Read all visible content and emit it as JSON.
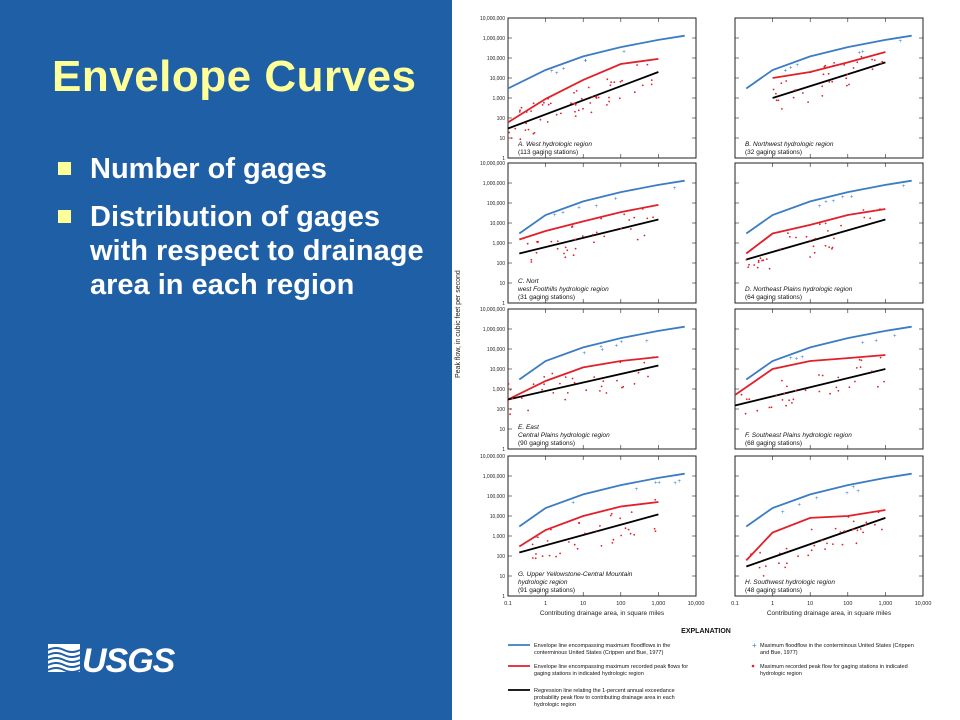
{
  "title": "Envelope Curves",
  "bullets": [
    "Number of gages",
    "Distribution of gages with respect to drainage area in each region"
  ],
  "logo_text": "USGS",
  "colors": {
    "background": "#1f5fa6",
    "title": "#ffff99",
    "bullet_text": "#ffffff",
    "national_envelope": "#3b7cc4",
    "regional_envelope": "#e0202a",
    "regression": "#000000",
    "regional_points": "#e0202a"
  },
  "chart_data": [
    {
      "type": "line",
      "title": "A. West hydrologic region",
      "subtitle": "(113 gaging stations)",
      "panel": "A",
      "x": [
        0.1,
        1,
        10,
        100,
        1000,
        10000
      ],
      "xlabel": "Contributing drainage area, in square miles",
      "ylabel": "Peak flow, in cubic feet per second",
      "xlim": [
        0.1,
        10000
      ],
      "ylim": [
        1,
        10000000
      ],
      "series": [
        {
          "name": "Envelope line encompassing maximum floodflows in the conterminous United States (Crippen and Bue, 1977)",
          "x": [
            0.1,
            1,
            10,
            100,
            1000,
            5000
          ],
          "y": [
            3000,
            25000,
            120000,
            350000,
            800000,
            1300000
          ]
        },
        {
          "name": "Envelope line encompassing maximum recorded peak flows for gaging stations in indicated hydrologic region",
          "x": [
            0.1,
            1,
            10,
            100,
            1000
          ],
          "y": [
            60,
            900,
            8000,
            50000,
            90000
          ]
        },
        {
          "name": "Regression line relating the 1-percent annual exceedance probability peak flow to contributing drainage area in each hydrologic region",
          "x": [
            0.1,
            1000
          ],
          "y": [
            30,
            20000
          ]
        }
      ]
    },
    {
      "type": "line",
      "title": "B. Northwest hydrologic region",
      "subtitle": "(32 gaging stations)",
      "panel": "B",
      "x": [
        0.1,
        1,
        10,
        100,
        1000,
        10000
      ],
      "xlim": [
        0.1,
        10000
      ],
      "ylim": [
        1,
        10000000
      ],
      "series": [
        {
          "name": "national",
          "x": [
            0.2,
            1,
            10,
            100,
            1000,
            5000
          ],
          "y": [
            3000,
            25000,
            120000,
            350000,
            800000,
            1300000
          ]
        },
        {
          "name": "regional",
          "x": [
            1,
            10,
            100,
            1000
          ],
          "y": [
            10000,
            20000,
            60000,
            200000
          ]
        },
        {
          "name": "regression",
          "x": [
            1,
            1000
          ],
          "y": [
            1000,
            60000
          ]
        }
      ]
    },
    {
      "type": "line",
      "title": "C. Northwest Foothills hydrologic region",
      "subtitle": "(31 gaging stations)",
      "panel": "C",
      "x": [
        0.1,
        1,
        10,
        100,
        1000,
        10000
      ],
      "xlim": [
        0.1,
        10000
      ],
      "ylim": [
        1,
        10000000
      ],
      "series": [
        {
          "name": "national",
          "x": [
            0.2,
            1,
            10,
            100,
            1000,
            5000
          ],
          "y": [
            3000,
            25000,
            120000,
            350000,
            800000,
            1300000
          ]
        },
        {
          "name": "regional",
          "x": [
            0.2,
            1,
            10,
            100,
            1000
          ],
          "y": [
            1500,
            4000,
            12000,
            35000,
            80000
          ]
        },
        {
          "name": "regression",
          "x": [
            0.2,
            1000
          ],
          "y": [
            300,
            15000
          ]
        }
      ]
    },
    {
      "type": "line",
      "title": "D. Northeast Plains hydrologic region",
      "subtitle": "(64 gaging stations)",
      "panel": "D",
      "x": [
        0.1,
        1,
        10,
        100,
        1000,
        10000
      ],
      "xlim": [
        0.1,
        10000
      ],
      "ylim": [
        1,
        10000000
      ],
      "series": [
        {
          "name": "national",
          "x": [
            0.2,
            1,
            10,
            100,
            1000,
            5000
          ],
          "y": [
            3000,
            25000,
            120000,
            350000,
            800000,
            1300000
          ]
        },
        {
          "name": "regional",
          "x": [
            0.2,
            1,
            10,
            100,
            1000
          ],
          "y": [
            300,
            3000,
            8000,
            25000,
            50000
          ]
        },
        {
          "name": "regression",
          "x": [
            0.2,
            1000
          ],
          "y": [
            150,
            15000
          ]
        }
      ]
    },
    {
      "type": "line",
      "title": "E. East-Central Plains hydrologic region",
      "subtitle": "(90 gaging stations)",
      "panel": "E",
      "x": [
        0.1,
        1,
        10,
        100,
        1000,
        10000
      ],
      "xlim": [
        0.1,
        10000
      ],
      "ylim": [
        1,
        10000000
      ],
      "series": [
        {
          "name": "national",
          "x": [
            0.2,
            1,
            10,
            100,
            1000,
            5000
          ],
          "y": [
            3000,
            25000,
            120000,
            350000,
            800000,
            1300000
          ]
        },
        {
          "name": "regional",
          "x": [
            0.1,
            1,
            10,
            100,
            1000
          ],
          "y": [
            300,
            2500,
            12000,
            25000,
            40000
          ]
        },
        {
          "name": "regression",
          "x": [
            0.1,
            1000
          ],
          "y": [
            300,
            15000
          ]
        }
      ]
    },
    {
      "type": "line",
      "title": "F. Southeast Plains hydrologic region",
      "subtitle": "(68 gaging stations)",
      "panel": "F",
      "x": [
        0.1,
        1,
        10,
        100,
        1000,
        10000
      ],
      "xlim": [
        0.1,
        10000
      ],
      "ylim": [
        1,
        10000000
      ],
      "series": [
        {
          "name": "national",
          "x": [
            0.2,
            1,
            10,
            100,
            1000,
            5000
          ],
          "y": [
            3000,
            25000,
            120000,
            350000,
            800000,
            1300000
          ]
        },
        {
          "name": "regional",
          "x": [
            0.1,
            1,
            10,
            100,
            1000
          ],
          "y": [
            500,
            10000,
            25000,
            35000,
            50000
          ]
        },
        {
          "name": "regression",
          "x": [
            0.1,
            1000
          ],
          "y": [
            150,
            10000
          ]
        }
      ]
    },
    {
      "type": "line",
      "title": "G. Upper Yellowstone-Central Mountain hydrologic region",
      "subtitle": "(91 gaging stations)",
      "panel": "G",
      "x": [
        0.1,
        1,
        10,
        100,
        1000,
        10000
      ],
      "xlim": [
        0.1,
        10000
      ],
      "ylim": [
        1,
        10000000
      ],
      "series": [
        {
          "name": "national",
          "x": [
            0.2,
            1,
            10,
            100,
            1000,
            5000
          ],
          "y": [
            3000,
            25000,
            120000,
            350000,
            800000,
            1300000
          ]
        },
        {
          "name": "regional",
          "x": [
            0.2,
            1,
            10,
            100,
            1000
          ],
          "y": [
            300,
            2000,
            10000,
            30000,
            50000
          ]
        },
        {
          "name": "regression",
          "x": [
            0.2,
            1000
          ],
          "y": [
            150,
            12000
          ]
        }
      ]
    },
    {
      "type": "line",
      "title": "H. Southwest hydrologic region",
      "subtitle": "(48 gaging stations)",
      "panel": "H",
      "x": [
        0.1,
        1,
        10,
        100,
        1000,
        10000
      ],
      "xlim": [
        0.1,
        10000
      ],
      "ylim": [
        1,
        10000000
      ],
      "series": [
        {
          "name": "national",
          "x": [
            0.2,
            1,
            10,
            100,
            1000,
            5000
          ],
          "y": [
            3000,
            25000,
            120000,
            350000,
            800000,
            1300000
          ]
        },
        {
          "name": "regional",
          "x": [
            0.2,
            1,
            10,
            100,
            1000
          ],
          "y": [
            60,
            1500,
            8000,
            10000,
            20000
          ]
        },
        {
          "name": "regression",
          "x": [
            0.2,
            1000
          ],
          "y": [
            30,
            8000
          ]
        }
      ]
    }
  ],
  "axes": {
    "y_ticks": [
      "10,000,000",
      "1,000,000",
      "100,000",
      "10,000",
      "1,000",
      "100",
      "10",
      "1"
    ],
    "x_ticks": [
      "0.1",
      "1",
      "10",
      "100",
      "1,000",
      "10,000"
    ],
    "ylabel": "Peak flow, in cubic feet per second",
    "xlabel": "Contributing drainage area, in square miles"
  },
  "explanation": {
    "heading": "EXPLANATION",
    "items": [
      {
        "symbol": "blue-line",
        "text": "Envelope line encompassing maximum floodflows in the conterminous United States (Crippen and Bue, 1977)"
      },
      {
        "symbol": "blue-plus",
        "text": "Maximum floodflow in the conterminous United States (Crippen and Bue, 1977)"
      },
      {
        "symbol": "red-line",
        "text": "Envelope line encompassing maximum recorded peak flows for gaging stations in indicated hydrologic region"
      },
      {
        "symbol": "red-dot",
        "text": "Maximum recorded peak flow for gaging stations in indicated hydrologic region"
      },
      {
        "symbol": "black-line",
        "text": "Regression line relating the 1-percent annual exceedance probability peak flow to contributing drainage area in each hydrologic region"
      }
    ]
  }
}
